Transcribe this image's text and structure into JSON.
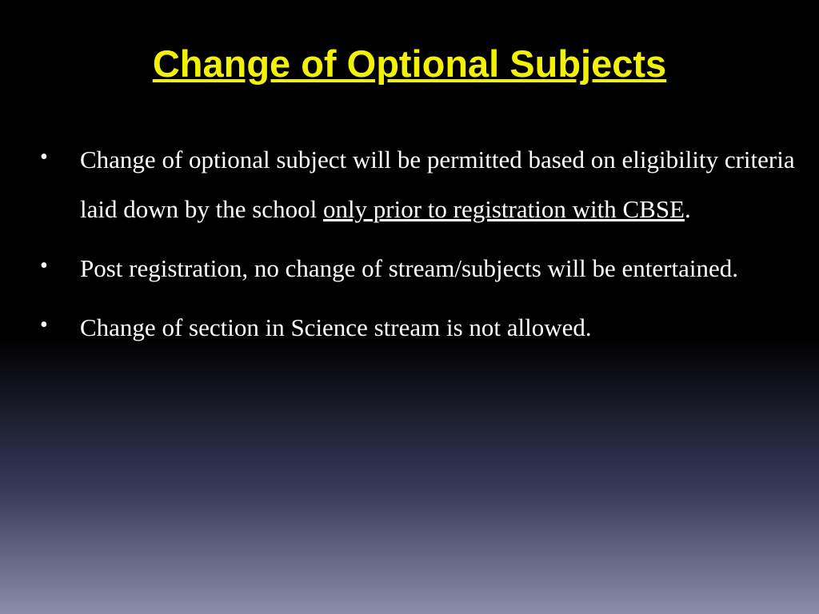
{
  "slide": {
    "title": "Change of Optional Subjects",
    "title_color": "#f2f200",
    "title_bg": "#000000",
    "title_fontsize": 47,
    "title_fontweight": 900,
    "bullets": [
      {
        "text_pre": "Change of optional subject will be   permitted based on eligibility criteria laid down by the school ",
        "text_underlined": "only prior to registration with CBSE",
        "text_post": "."
      },
      {
        "text_pre": "Post registration, no change of stream/subjects will be entertained.",
        "text_underlined": "",
        "text_post": ""
      },
      {
        "text_pre": "Change of section in Science stream is not allowed.",
        "text_underlined": "",
        "text_post": ""
      }
    ],
    "body_fontsize": 31,
    "body_color": "#ffffff",
    "bg_gradient_start": "#000000",
    "bg_gradient_end": "#8b8ea8"
  }
}
